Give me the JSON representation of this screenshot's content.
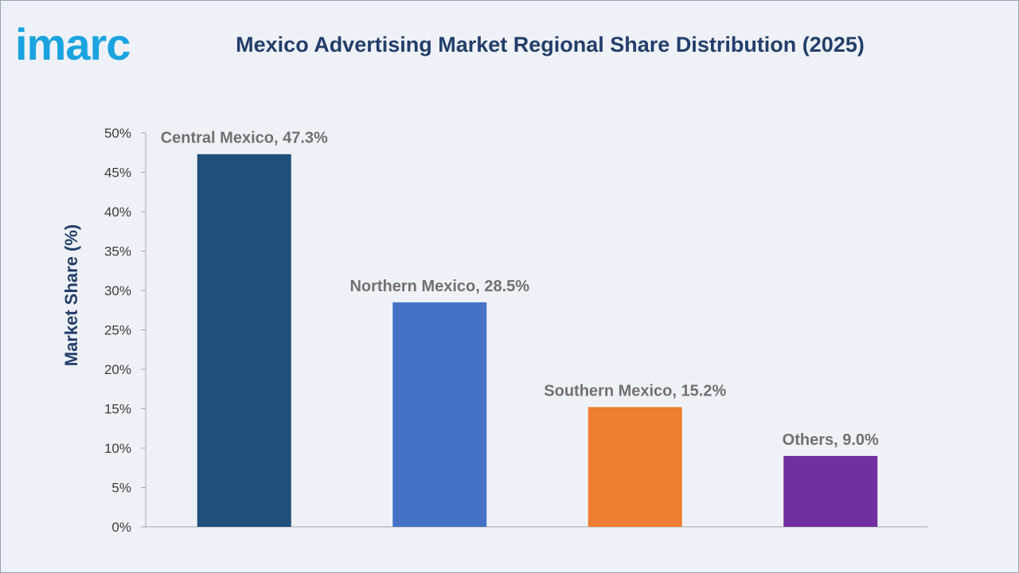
{
  "brand": {
    "logo_text": "imarc",
    "logo_color": "#1aa3e0"
  },
  "colors": {
    "title": "#233e6a",
    "axis_text": "#3a3a3a",
    "data_label": "#707070",
    "axis_line": "#a6a6a6",
    "background": "#eef2f8"
  },
  "chart_data": {
    "type": "bar",
    "title": "Mexico Advertising Market Regional Share Distribution (2025)",
    "xlabel": "",
    "ylabel": "Market Share (%)",
    "ylim": [
      0,
      50
    ],
    "y_ticks": [
      0,
      5,
      10,
      15,
      20,
      25,
      30,
      35,
      40,
      45,
      50
    ],
    "y_tick_suffix": "%",
    "grid": false,
    "legend": "none",
    "categories": [
      "Central Mexico",
      "Northern Mexico",
      "Southern Mexico",
      "Others"
    ],
    "values": [
      47.3,
      28.5,
      15.2,
      9.0
    ],
    "data_labels": [
      "Central Mexico, 47.3%",
      "Northern Mexico, 28.5%",
      "Southern Mexico, 15.2%",
      "Others, 9.0%"
    ],
    "bar_colors": [
      "#1f4e79",
      "#4472c4",
      "#ed7d31",
      "#7030a0"
    ]
  }
}
